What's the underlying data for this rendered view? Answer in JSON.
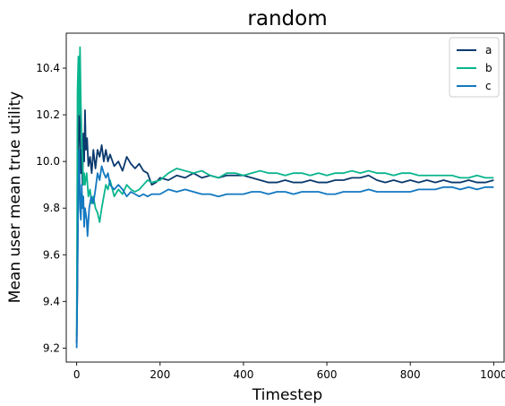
{
  "chart_data": {
    "type": "line",
    "title": "random",
    "xlabel": "Timestep",
    "ylabel": "Mean user mean true utility",
    "xlim": [
      -25,
      1025
    ],
    "ylim": [
      9.14,
      10.55
    ],
    "xticks": [
      0,
      200,
      400,
      600,
      800,
      1000
    ],
    "yticks": [
      9.2,
      9.4,
      9.6,
      9.8,
      10.0,
      10.2,
      10.4
    ],
    "xtick_labels": [
      "0",
      "200",
      "400",
      "600",
      "800",
      "1000"
    ],
    "ytick_labels": [
      "9.2",
      "9.4",
      "9.6",
      "9.8",
      "10.0",
      "10.2",
      "10.4"
    ],
    "grid": false,
    "legend_position": "upper-right",
    "series": [
      {
        "name": "a",
        "color": "#0b3a6e",
        "points": [
          [
            0,
            9.22
          ],
          [
            2,
            9.5
          ],
          [
            4,
            10.05
          ],
          [
            6,
            10.3
          ],
          [
            8,
            10.1
          ],
          [
            10,
            9.95
          ],
          [
            12,
            10.05
          ],
          [
            14,
            9.9
          ],
          [
            16,
            10.12
          ],
          [
            18,
            10.0
          ],
          [
            20,
            10.22
          ],
          [
            22,
            10.05
          ],
          [
            25,
            10.1
          ],
          [
            28,
            9.98
          ],
          [
            32,
            10.02
          ],
          [
            36,
            9.95
          ],
          [
            40,
            10.05
          ],
          [
            45,
            9.97
          ],
          [
            50,
            10.05
          ],
          [
            55,
            10.02
          ],
          [
            60,
            10.07
          ],
          [
            65,
            10.0
          ],
          [
            70,
            10.05
          ],
          [
            75,
            10.0
          ],
          [
            80,
            10.03
          ],
          [
            90,
            9.98
          ],
          [
            100,
            10.0
          ],
          [
            110,
            9.96
          ],
          [
            120,
            10.02
          ],
          [
            130,
            9.99
          ],
          [
            140,
            9.97
          ],
          [
            150,
            9.99
          ],
          [
            160,
            9.96
          ],
          [
            170,
            9.95
          ],
          [
            180,
            9.9
          ],
          [
            190,
            9.91
          ],
          [
            200,
            9.93
          ],
          [
            220,
            9.92
          ],
          [
            240,
            9.94
          ],
          [
            260,
            9.93
          ],
          [
            280,
            9.95
          ],
          [
            300,
            9.93
          ],
          [
            320,
            9.94
          ],
          [
            340,
            9.93
          ],
          [
            360,
            9.94
          ],
          [
            380,
            9.94
          ],
          [
            400,
            9.94
          ],
          [
            420,
            9.93
          ],
          [
            440,
            9.92
          ],
          [
            460,
            9.91
          ],
          [
            480,
            9.91
          ],
          [
            500,
            9.92
          ],
          [
            520,
            9.91
          ],
          [
            540,
            9.91
          ],
          [
            560,
            9.92
          ],
          [
            580,
            9.91
          ],
          [
            600,
            9.91
          ],
          [
            620,
            9.92
          ],
          [
            640,
            9.92
          ],
          [
            660,
            9.93
          ],
          [
            680,
            9.93
          ],
          [
            700,
            9.94
          ],
          [
            720,
            9.92
          ],
          [
            740,
            9.91
          ],
          [
            760,
            9.92
          ],
          [
            780,
            9.91
          ],
          [
            800,
            9.92
          ],
          [
            820,
            9.91
          ],
          [
            840,
            9.92
          ],
          [
            860,
            9.91
          ],
          [
            880,
            9.92
          ],
          [
            900,
            9.91
          ],
          [
            920,
            9.91
          ],
          [
            940,
            9.92
          ],
          [
            960,
            9.91
          ],
          [
            980,
            9.91
          ],
          [
            1000,
            9.92
          ]
        ]
      },
      {
        "name": "b",
        "color": "#0ab58e",
        "points": [
          [
            0,
            9.25
          ],
          [
            2,
            10.3
          ],
          [
            4,
            10.45
          ],
          [
            6,
            10.2
          ],
          [
            8,
            10.49
          ],
          [
            10,
            10.25
          ],
          [
            12,
            10.1
          ],
          [
            14,
            10.0
          ],
          [
            16,
            9.9
          ],
          [
            18,
            9.95
          ],
          [
            20,
            9.9
          ],
          [
            24,
            9.95
          ],
          [
            28,
            9.85
          ],
          [
            32,
            9.88
          ],
          [
            36,
            9.82
          ],
          [
            40,
            9.85
          ],
          [
            45,
            9.8
          ],
          [
            50,
            9.78
          ],
          [
            55,
            9.74
          ],
          [
            60,
            9.8
          ],
          [
            65,
            9.85
          ],
          [
            70,
            9.9
          ],
          [
            75,
            9.88
          ],
          [
            80,
            9.92
          ],
          [
            90,
            9.85
          ],
          [
            100,
            9.88
          ],
          [
            110,
            9.86
          ],
          [
            120,
            9.9
          ],
          [
            130,
            9.88
          ],
          [
            140,
            9.87
          ],
          [
            150,
            9.88
          ],
          [
            160,
            9.9
          ],
          [
            170,
            9.92
          ],
          [
            180,
            9.91
          ],
          [
            200,
            9.92
          ],
          [
            220,
            9.95
          ],
          [
            240,
            9.97
          ],
          [
            260,
            9.96
          ],
          [
            280,
            9.95
          ],
          [
            300,
            9.96
          ],
          [
            320,
            9.94
          ],
          [
            340,
            9.93
          ],
          [
            360,
            9.95
          ],
          [
            380,
            9.95
          ],
          [
            400,
            9.94
          ],
          [
            420,
            9.95
          ],
          [
            440,
            9.96
          ],
          [
            460,
            9.95
          ],
          [
            480,
            9.95
          ],
          [
            500,
            9.94
          ],
          [
            520,
            9.95
          ],
          [
            540,
            9.95
          ],
          [
            560,
            9.94
          ],
          [
            580,
            9.95
          ],
          [
            600,
            9.94
          ],
          [
            620,
            9.95
          ],
          [
            640,
            9.95
          ],
          [
            660,
            9.96
          ],
          [
            680,
            9.95
          ],
          [
            700,
            9.96
          ],
          [
            720,
            9.95
          ],
          [
            740,
            9.95
          ],
          [
            760,
            9.94
          ],
          [
            780,
            9.95
          ],
          [
            800,
            9.95
          ],
          [
            820,
            9.94
          ],
          [
            840,
            9.94
          ],
          [
            860,
            9.94
          ],
          [
            880,
            9.94
          ],
          [
            900,
            9.94
          ],
          [
            920,
            9.93
          ],
          [
            940,
            9.93
          ],
          [
            960,
            9.94
          ],
          [
            980,
            9.93
          ],
          [
            1000,
            9.93
          ]
        ]
      },
      {
        "name": "c",
        "color": "#1278c0",
        "points": [
          [
            0,
            9.2
          ],
          [
            2,
            9.55
          ],
          [
            4,
            9.9
          ],
          [
            6,
            10.05
          ],
          [
            8,
            9.8
          ],
          [
            10,
            9.75
          ],
          [
            12,
            9.9
          ],
          [
            14,
            9.8
          ],
          [
            16,
            9.85
          ],
          [
            18,
            9.72
          ],
          [
            20,
            9.8
          ],
          [
            24,
            9.75
          ],
          [
            26,
            9.68
          ],
          [
            30,
            9.8
          ],
          [
            35,
            9.85
          ],
          [
            40,
            9.82
          ],
          [
            45,
            9.88
          ],
          [
            50,
            9.95
          ],
          [
            55,
            9.92
          ],
          [
            60,
            9.98
          ],
          [
            65,
            9.95
          ],
          [
            70,
            9.93
          ],
          [
            75,
            9.95
          ],
          [
            80,
            9.9
          ],
          [
            90,
            9.88
          ],
          [
            100,
            9.9
          ],
          [
            110,
            9.88
          ],
          [
            120,
            9.85
          ],
          [
            130,
            9.87
          ],
          [
            140,
            9.86
          ],
          [
            150,
            9.85
          ],
          [
            160,
            9.86
          ],
          [
            170,
            9.85
          ],
          [
            180,
            9.86
          ],
          [
            200,
            9.86
          ],
          [
            220,
            9.88
          ],
          [
            240,
            9.87
          ],
          [
            260,
            9.88
          ],
          [
            280,
            9.87
          ],
          [
            300,
            9.86
          ],
          [
            320,
            9.86
          ],
          [
            340,
            9.85
          ],
          [
            360,
            9.86
          ],
          [
            380,
            9.86
          ],
          [
            400,
            9.86
          ],
          [
            420,
            9.87
          ],
          [
            440,
            9.87
          ],
          [
            460,
            9.86
          ],
          [
            480,
            9.87
          ],
          [
            500,
            9.87
          ],
          [
            520,
            9.86
          ],
          [
            540,
            9.87
          ],
          [
            560,
            9.87
          ],
          [
            580,
            9.87
          ],
          [
            600,
            9.86
          ],
          [
            620,
            9.86
          ],
          [
            640,
            9.87
          ],
          [
            660,
            9.87
          ],
          [
            680,
            9.87
          ],
          [
            700,
            9.88
          ],
          [
            720,
            9.87
          ],
          [
            740,
            9.87
          ],
          [
            760,
            9.87
          ],
          [
            780,
            9.87
          ],
          [
            800,
            9.87
          ],
          [
            820,
            9.88
          ],
          [
            840,
            9.88
          ],
          [
            860,
            9.88
          ],
          [
            880,
            9.89
          ],
          [
            900,
            9.89
          ],
          [
            920,
            9.88
          ],
          [
            940,
            9.89
          ],
          [
            960,
            9.88
          ],
          [
            980,
            9.89
          ],
          [
            1000,
            9.89
          ]
        ]
      }
    ]
  }
}
